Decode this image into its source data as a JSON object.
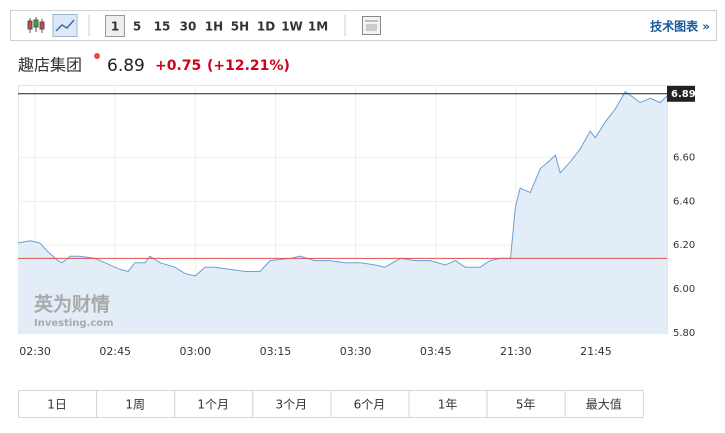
{
  "toolbar": {
    "intervals": [
      "1",
      "5",
      "15",
      "30",
      "1H",
      "5H",
      "1D",
      "1W",
      "1M"
    ],
    "selected": 0,
    "link": "技术图表 »"
  },
  "header": {
    "name": "趣店集团",
    "price": "6.89",
    "change": "+0.75",
    "change_pct": "(+12.21%)"
  },
  "watermark": {
    "brand": "英为财情",
    "site": "Investing.com"
  },
  "chart_data": {
    "type": "line",
    "x": [
      -3.2,
      -0.9,
      0.9,
      2.4,
      4.3,
      5,
      6.6,
      8.4,
      11.2,
      13.1,
      15.9,
      17.4,
      18.7,
      20.6,
      21.5,
      23.4,
      26.2,
      28.1,
      30,
      31.8,
      33.7,
      36.5,
      39.3,
      42.1,
      44,
      47.8,
      49.6,
      52.4,
      55.2,
      58.1,
      60.9,
      63.7,
      65.5,
      68.4,
      71.2,
      74,
      76.8,
      78.7,
      80.5,
      83.3,
      85.2,
      87.1,
      89,
      89.9,
      90.8,
      92.7,
      94.6,
      96.1,
      97.4,
      98.3,
      100.2,
      102.1,
      103.9,
      104.9,
      106.7,
      108.6,
      110.5,
      113.3,
      115.2,
      117,
      118.3
    ],
    "series": [
      {
        "color": "#6d9fd3",
        "values": [
          6.21,
          6.22,
          6.21,
          6.17,
          6.13,
          6.12,
          6.15,
          6.15,
          6.14,
          6.12,
          6.09,
          6.08,
          6.12,
          6.12,
          6.15,
          6.12,
          6.1,
          6.07,
          6.06,
          6.1,
          6.1,
          6.09,
          6.08,
          6.08,
          6.13,
          6.14,
          6.15,
          6.13,
          6.13,
          6.12,
          6.12,
          6.11,
          6.1,
          6.14,
          6.13,
          6.13,
          6.11,
          6.13,
          6.1,
          6.1,
          6.13,
          6.14,
          6.14,
          6.37,
          6.46,
          6.44,
          6.55,
          6.58,
          6.61,
          6.53,
          6.58,
          6.64,
          6.72,
          6.69,
          6.76,
          6.82,
          6.9,
          6.85,
          6.87,
          6.85,
          6.88
        ]
      }
    ],
    "xlim": [
      -3.2,
      118.3
    ],
    "xticks": [
      {
        "value": 0,
        "label": "02:30"
      },
      {
        "value": 15,
        "label": "02:45"
      },
      {
        "value": 30,
        "label": "03:00"
      },
      {
        "value": 45,
        "label": "03:15"
      },
      {
        "value": 60,
        "label": "03:30"
      },
      {
        "value": 75,
        "label": "03:45"
      },
      {
        "value": 90,
        "label": "21:30"
      },
      {
        "value": 105,
        "label": "21:45"
      }
    ],
    "ylim": [
      5.8,
      6.93
    ],
    "yticks": [
      {
        "value": 5.8,
        "label": "5.80"
      },
      {
        "value": 6.0,
        "label": "6.00"
      },
      {
        "value": 6.2,
        "label": "6.20"
      },
      {
        "value": 6.4,
        "label": "6.40"
      },
      {
        "value": 6.6,
        "label": "6.60"
      }
    ],
    "last_value": 6.89,
    "previous_close": 6.14,
    "grid": true
  },
  "range_tabs": [
    "1日",
    "1周",
    "1个月",
    "3个月",
    "6个月",
    "1年",
    "5年",
    "最大值"
  ]
}
